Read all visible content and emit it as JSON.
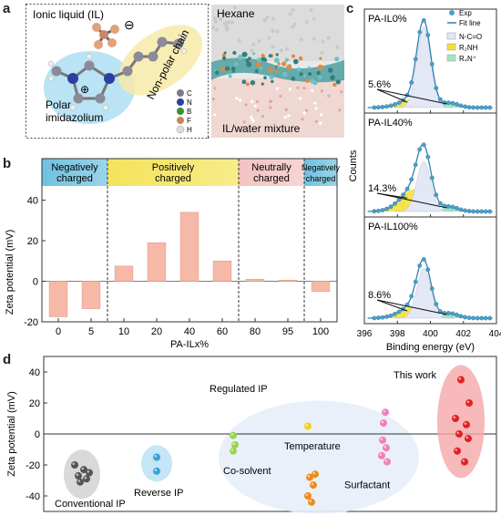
{
  "panels": {
    "a": {
      "letter": "a",
      "ionic_liquid_label": "Ionic liquid (IL)",
      "polar_label_1": "Polar",
      "polar_label_2": "imidazolium",
      "nonpolar_label": "Non-polar chain",
      "hexane_label": "Hexane",
      "mixture_label": "IL/water mixture",
      "legend": [
        {
          "label": "C",
          "color": "#7a7a8a"
        },
        {
          "label": "N",
          "color": "#2b3fa0"
        },
        {
          "label": "B",
          "color": "#3a8f3a"
        },
        {
          "label": "F",
          "color": "#c8845a"
        },
        {
          "label": "H",
          "color": "#dddddd"
        }
      ],
      "charge_plus": "⊕",
      "charge_minus": "⊖"
    },
    "b": {
      "letter": "b",
      "groups": [
        {
          "label_1": "Negatively",
          "label_2": "charged",
          "color": "#6fc1e0"
        },
        {
          "label_1": "Positively",
          "label_2": "charged",
          "color": "#f4e35a"
        },
        {
          "label_1": "Neutrally",
          "label_2": "charged",
          "color": "#f3c2c2"
        },
        {
          "label_1": "Negatively",
          "label_2": "charged",
          "color": "#6fc1e0"
        }
      ]
    },
    "c": {
      "letter": "c",
      "subpanels": [
        {
          "title": "PA-IL0%",
          "percent_label": "5.6%"
        },
        {
          "title": "PA-IL40%",
          "percent_label": "14.3%"
        },
        {
          "title": "PA-IL100%",
          "percent_label": "8.6%"
        }
      ],
      "legend": {
        "exp": "Exp",
        "fit": "Fit line",
        "nco": "N-C=O",
        "r2nh": "R₂NH",
        "r4n": "R₄N⁺"
      },
      "colors": {
        "nco": "#e4e8f5",
        "r2nh": "#f3e03a",
        "r4n": "#9fe5c2",
        "exp": "#4aa0c8",
        "fit": "#2f7fb0"
      },
      "ylabel": "Counts",
      "xlabel": "Binding energy (eV)",
      "xticks": [
        "396",
        "398",
        "400",
        "402",
        "404"
      ]
    },
    "d": {
      "letter": "d",
      "labels": {
        "conventional": "Conventional IP",
        "reverse": "Reverse IP",
        "regulated": "Regulated IP",
        "cosolvent": "Co-solvent",
        "temperature": "Temperature",
        "surfactant": "Surfactant",
        "this_work": "This work"
      }
    }
  },
  "chart_data": [
    {
      "type": "bar",
      "title": "",
      "categories": [
        "0",
        "5",
        "10",
        "20",
        "40",
        "60",
        "80",
        "95",
        "100"
      ],
      "values": [
        -17.5,
        -13.5,
        7.5,
        19,
        34,
        10,
        1,
        0.5,
        -5
      ],
      "xlabel": "PA-ILx%",
      "ylabel": "Zeta potential (mV)",
      "ylim": [
        -20,
        47
      ],
      "yticks": [
        -20,
        0,
        20,
        40
      ],
      "grid": false,
      "bar_color": "#f6b9a8"
    },
    {
      "type": "scatter",
      "title": "",
      "ylabel": "Zeta potential (mV)",
      "ylim": [
        -50,
        50
      ],
      "yticks": [
        -40,
        -20,
        0,
        20,
        40
      ],
      "grid": false,
      "groups": [
        {
          "name": "Conventional IP",
          "color": "#555555",
          "values": [
            -20,
            -23,
            -27,
            -29,
            -31,
            -25
          ]
        },
        {
          "name": "Reverse IP",
          "color": "#3aa0d8",
          "values": [
            -15,
            -24
          ]
        },
        {
          "name": "Co-solvent",
          "color": "#9ad44a",
          "values": [
            -1,
            -7,
            -11
          ]
        },
        {
          "name": "Temperature",
          "color": "#f2d21a",
          "values": [
            5
          ]
        },
        {
          "name": "Temperature (orange)",
          "color": "#f08a1a",
          "values": [
            -28,
            -33,
            -40,
            -44,
            -26
          ]
        },
        {
          "name": "Surfactant",
          "color": "#f17fb6",
          "values": [
            7,
            14,
            -4,
            -9,
            -14,
            -18
          ]
        },
        {
          "name": "This work",
          "color": "#e02222",
          "values": [
            35,
            20,
            10,
            6,
            0,
            -3,
            -11,
            -18
          ]
        }
      ]
    }
  ]
}
